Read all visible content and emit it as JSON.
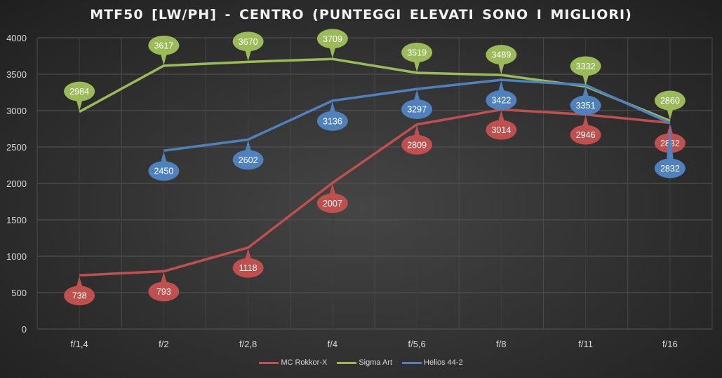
{
  "chart_data": {
    "type": "line",
    "title": "MTF50 [LW/PH]  - CENTRO  (PUNTEGGI  ELEVATI  SONO  I  MIGLIORI)",
    "xlabel": "",
    "ylabel": "",
    "categories": [
      "f/1,4",
      "f/2",
      "f/2,8",
      "f/4",
      "f/5,6",
      "f/8",
      "f/11",
      "f/16"
    ],
    "ylim": [
      0,
      4000
    ],
    "yticks": [
      "0",
      "500",
      "1000",
      "1500",
      "2000",
      "2500",
      "3000",
      "3500",
      "4000"
    ],
    "grid": true,
    "legend": "bottom",
    "series": [
      {
        "name": "MC Rokkor-X",
        "color": "#c0504d",
        "label_pos": "below",
        "values": [
          738,
          793,
          1118,
          2007,
          2809,
          3014,
          2946,
          2832
        ]
      },
      {
        "name": "Sigma Art",
        "color": "#9bbb59",
        "label_pos": "above",
        "values": [
          2984,
          3617,
          3670,
          3709,
          3519,
          3489,
          3332,
          2860
        ]
      },
      {
        "name": "Helios 44-2",
        "color": "#4f81bd",
        "label_pos": "below",
        "values": [
          null,
          2450,
          2602,
          3136,
          3297,
          3422,
          3351,
          2832
        ]
      }
    ]
  }
}
